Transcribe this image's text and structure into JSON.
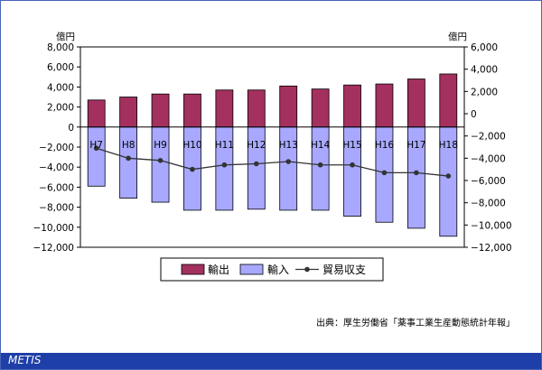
{
  "chart_data": {
    "type": "bar",
    "categories": [
      "H7",
      "H8",
      "H9",
      "H10",
      "H11",
      "H12",
      "H13",
      "H14",
      "H15",
      "H16",
      "H17",
      "H18"
    ],
    "series": [
      {
        "name": "輸出",
        "type": "bar",
        "axis": "left",
        "values": [
          2700,
          3000,
          3300,
          3300,
          3700,
          3700,
          4100,
          3800,
          4200,
          4300,
          4800,
          5300
        ]
      },
      {
        "name": "輸入",
        "type": "bar",
        "axis": "left",
        "values": [
          -5900,
          -7100,
          -7500,
          -8300,
          -8300,
          -8200,
          -8300,
          -8300,
          -8900,
          -9500,
          -10100,
          -10900
        ]
      },
      {
        "name": "貿易収支",
        "type": "line",
        "axis": "right",
        "values": [
          -3100,
          -4000,
          -4200,
          -5000,
          -4600,
          -4500,
          -4300,
          -4600,
          -4600,
          -5300,
          -5300,
          -5600
        ]
      }
    ],
    "y_left": {
      "unit": "億円",
      "min": -12000,
      "max": 8000,
      "step": 2000
    },
    "y_right": {
      "unit": "億円",
      "min": -12000,
      "max": 6000,
      "step": 2000
    },
    "colors": {
      "export": "#a3305f",
      "import": "#a8a8ff",
      "balance": "#333333"
    },
    "legend": {
      "position": "bottom",
      "labels": [
        "輸出",
        "輸入",
        "貿易収支"
      ]
    }
  },
  "source_text": "出典：厚生労働省「薬事工業生産動態統計年報」",
  "footer_label": "METIS"
}
